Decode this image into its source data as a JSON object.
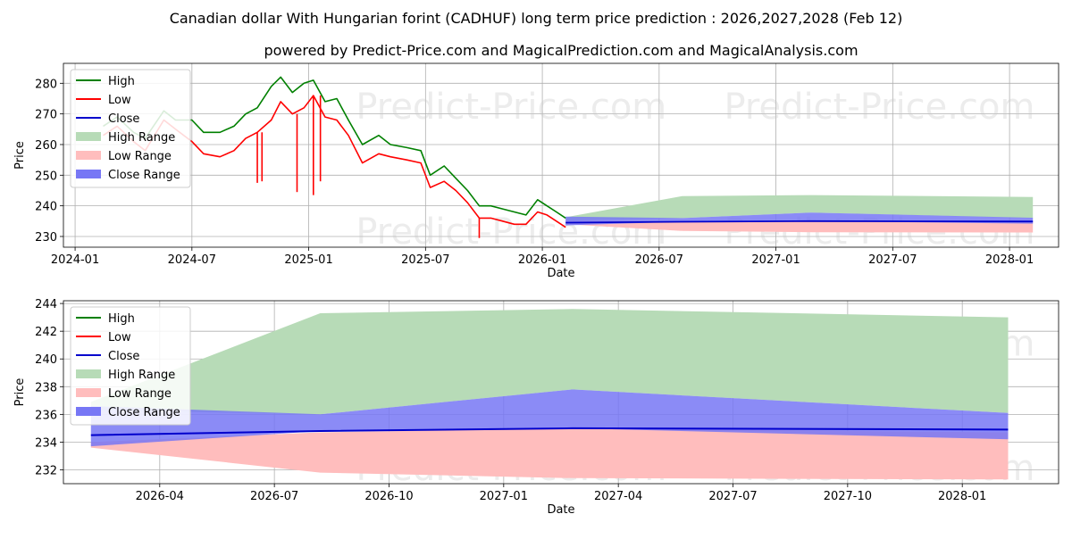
{
  "title": "Canadian dollar With Hungarian forint (CADHUF) long term price prediction : 2026,2027,2028 (Feb 12)",
  "subtitle": "powered by Predict-Price.com and MagicalPrediction.com and MagicalAnalysis.com",
  "watermark": "Predict-Price.com",
  "colors": {
    "high": "#008000",
    "low": "#ff0000",
    "close": "#0000cc",
    "high_range": "#b7dbb7",
    "low_range": "#ffbdbd",
    "close_range": "#7777f5",
    "grid": "#b0b0b0"
  },
  "legend": {
    "labels": [
      "High",
      "Low",
      "Close",
      "High Range",
      "Low Range",
      "Close Range"
    ]
  },
  "chart_data": [
    {
      "type": "line",
      "title": "",
      "xlabel": "Date",
      "ylabel": "Price",
      "xlim": [
        2023.95,
        2028.21
      ],
      "ylim": [
        226.5,
        286.5
      ],
      "x_ticks": [
        2024.0,
        2024.5,
        2025.0,
        2025.5,
        2026.0,
        2026.5,
        2027.0,
        2027.5,
        2028.0
      ],
      "x_tick_labels": [
        "2024-01",
        "2024-07",
        "2025-01",
        "2025-07",
        "2026-01",
        "2026-07",
        "2027-01",
        "2027-07",
        "2028-01"
      ],
      "y_ticks": [
        230,
        240,
        250,
        260,
        270,
        280
      ],
      "legend_position": "upper-left",
      "history": {
        "x": [
          2024.12,
          2024.18,
          2024.25,
          2024.3,
          2024.38,
          2024.43,
          2024.5,
          2024.55,
          2024.62,
          2024.68,
          2024.73,
          2024.78,
          2024.84,
          2024.88,
          2024.93,
          2024.98,
          2025.02,
          2025.07,
          2025.12,
          2025.17,
          2025.23,
          2025.3,
          2025.35,
          2025.42,
          2025.48,
          2025.52,
          2025.58,
          2025.63,
          2025.68,
          2025.73,
          2025.78,
          2025.83,
          2025.88,
          2025.93,
          2025.98,
          2026.02,
          2026.06,
          2026.1
        ],
        "high": [
          266,
          269,
          264,
          262,
          271,
          268,
          268,
          264,
          264,
          266,
          270,
          272,
          279,
          282,
          277,
          280,
          281,
          274,
          275,
          268,
          260,
          263,
          260,
          259,
          258,
          250,
          253,
          249,
          245,
          240,
          240,
          239,
          238,
          237,
          242,
          240,
          238,
          236
        ],
        "low": [
          263,
          266,
          261,
          258,
          268,
          265,
          261,
          257,
          256,
          258,
          262,
          264,
          268,
          274,
          270,
          272,
          276,
          269,
          268,
          263,
          254,
          257,
          256,
          255,
          254,
          246,
          248,
          245,
          241,
          236,
          236,
          235,
          234,
          234,
          238,
          237,
          235,
          233
        ]
      },
      "spikes": [
        {
          "x": 2024.78,
          "value": 247.5
        },
        {
          "x": 2024.8,
          "value": 248
        },
        {
          "x": 2024.95,
          "value": 244.5
        },
        {
          "x": 2025.02,
          "value": 243.5
        },
        {
          "x": 2025.05,
          "value": 248
        },
        {
          "x": 2025.73,
          "value": 229.5
        }
      ],
      "forecast": {
        "x": [
          2026.1,
          2026.6,
          2027.15,
          2028.1
        ],
        "high_range_upper": [
          236.3,
          243.2,
          243.5,
          242.9
        ],
        "high_range_lower": [
          235.2,
          236.0,
          237.8,
          236.0
        ],
        "low_range_upper": [
          235.2,
          235.0,
          235.0,
          235.0
        ],
        "low_range_lower": [
          234.0,
          231.8,
          231.4,
          231.3
        ],
        "close_range_upper": [
          236.5,
          236.0,
          237.8,
          236.1
        ],
        "close_range_lower": [
          233.6,
          234.8,
          235.0,
          234.2
        ],
        "close": [
          234.5,
          234.8,
          235.0,
          234.9
        ]
      }
    },
    {
      "type": "line",
      "title": "",
      "xlabel": "Date",
      "ylabel": "Price",
      "xlim": [
        2026.04,
        2028.21
      ],
      "ylim": [
        231.0,
        244.2
      ],
      "x_ticks": [
        2026.25,
        2026.5,
        2026.75,
        2027.0,
        2027.25,
        2027.5,
        2027.75,
        2028.0
      ],
      "x_tick_labels": [
        "2026-04",
        "2026-07",
        "2026-10",
        "2027-01",
        "2027-04",
        "2027-07",
        "2027-10",
        "2028-01"
      ],
      "y_ticks": [
        232,
        234,
        236,
        238,
        240,
        242,
        244
      ],
      "legend_position": "upper-left",
      "series": [
        {
          "name": "High Range",
          "x": [
            2026.1,
            2026.6,
            2027.15,
            2028.1
          ],
          "upper": [
            236.9,
            243.3,
            243.6,
            243.0
          ],
          "lower": [
            236.3,
            236.0,
            237.8,
            236.1
          ]
        },
        {
          "name": "Low Range",
          "x": [
            2026.1,
            2026.6,
            2027.15,
            2028.1
          ],
          "upper": [
            234.0,
            234.7,
            235.0,
            234.7
          ],
          "lower": [
            233.6,
            231.8,
            231.4,
            231.3
          ]
        },
        {
          "name": "Close Range",
          "x": [
            2026.1,
            2026.6,
            2027.15,
            2028.1
          ],
          "upper": [
            236.6,
            236.0,
            237.8,
            236.1
          ],
          "lower": [
            233.7,
            234.8,
            235.0,
            234.2
          ]
        },
        {
          "name": "Close",
          "x": [
            2026.1,
            2026.6,
            2027.15,
            2028.1
          ],
          "values": [
            234.5,
            234.8,
            235.0,
            234.9
          ]
        }
      ]
    }
  ]
}
